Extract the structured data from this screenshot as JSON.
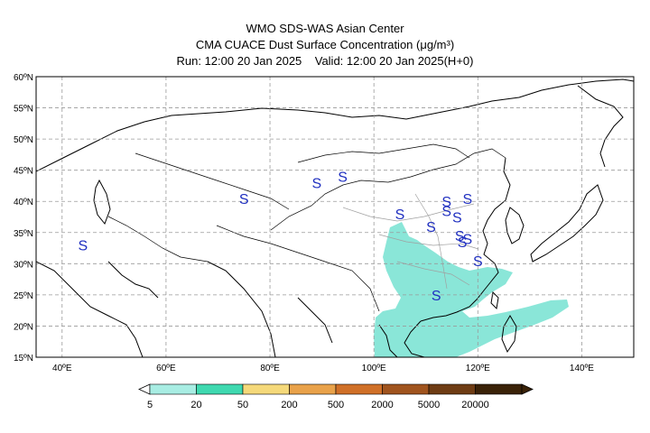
{
  "header": {
    "line1": "WMO SDS-WAS Asian Center",
    "line2": "CMA CUACE Dust Surface Concentration (μg/m³)",
    "line3_run": "Run: 12:00 20 Jan 2025",
    "line3_valid": "Valid: 12:00 20 Jan 2025(H+0)"
  },
  "map": {
    "lat_labels": [
      "60ºN",
      "55ºN",
      "50ºN",
      "45ºN",
      "40ºN",
      "35ºN",
      "30ºN",
      "25ºN",
      "20ºN",
      "15ºN"
    ],
    "lon_labels": [
      "40ºE",
      "60ºE",
      "80ºE",
      "100ºE",
      "120ºE",
      "140ºE"
    ],
    "lat_values": [
      60,
      55,
      50,
      45,
      40,
      35,
      30,
      25,
      20,
      15
    ],
    "lon_values": [
      40,
      60,
      80,
      100,
      120,
      140
    ],
    "lon_range": [
      35,
      150
    ],
    "lat_range": [
      15,
      60
    ],
    "dust_fill_color": "#8ae6d8",
    "grid": "dashed",
    "storm_marker_symbol": "S",
    "storm_marker_color": "#2030c0",
    "storm_markers": [
      {
        "lon": 44,
        "lat": 33
      },
      {
        "lon": 75,
        "lat": 40.5
      },
      {
        "lon": 89,
        "lat": 43
      },
      {
        "lon": 94,
        "lat": 44
      },
      {
        "lon": 105,
        "lat": 38
      },
      {
        "lon": 111,
        "lat": 36
      },
      {
        "lon": 114,
        "lat": 40
      },
      {
        "lon": 114,
        "lat": 38.5
      },
      {
        "lon": 116,
        "lat": 37.5
      },
      {
        "lon": 118,
        "lat": 40.5
      },
      {
        "lon": 116.5,
        "lat": 34.5
      },
      {
        "lon": 117,
        "lat": 33.5
      },
      {
        "lon": 118,
        "lat": 34
      },
      {
        "lon": 120,
        "lat": 30.5
      },
      {
        "lon": 112,
        "lat": 25
      }
    ]
  },
  "colorbar": {
    "labels": [
      "5",
      "20",
      "50",
      "200",
      "500",
      "2000",
      "5000",
      "20000"
    ],
    "colors": [
      "#a8ede3",
      "#3fd9b0",
      "#f5d97a",
      "#e9a24a",
      "#d07028",
      "#a0541e",
      "#6e3c14",
      "#3a2208"
    ]
  }
}
